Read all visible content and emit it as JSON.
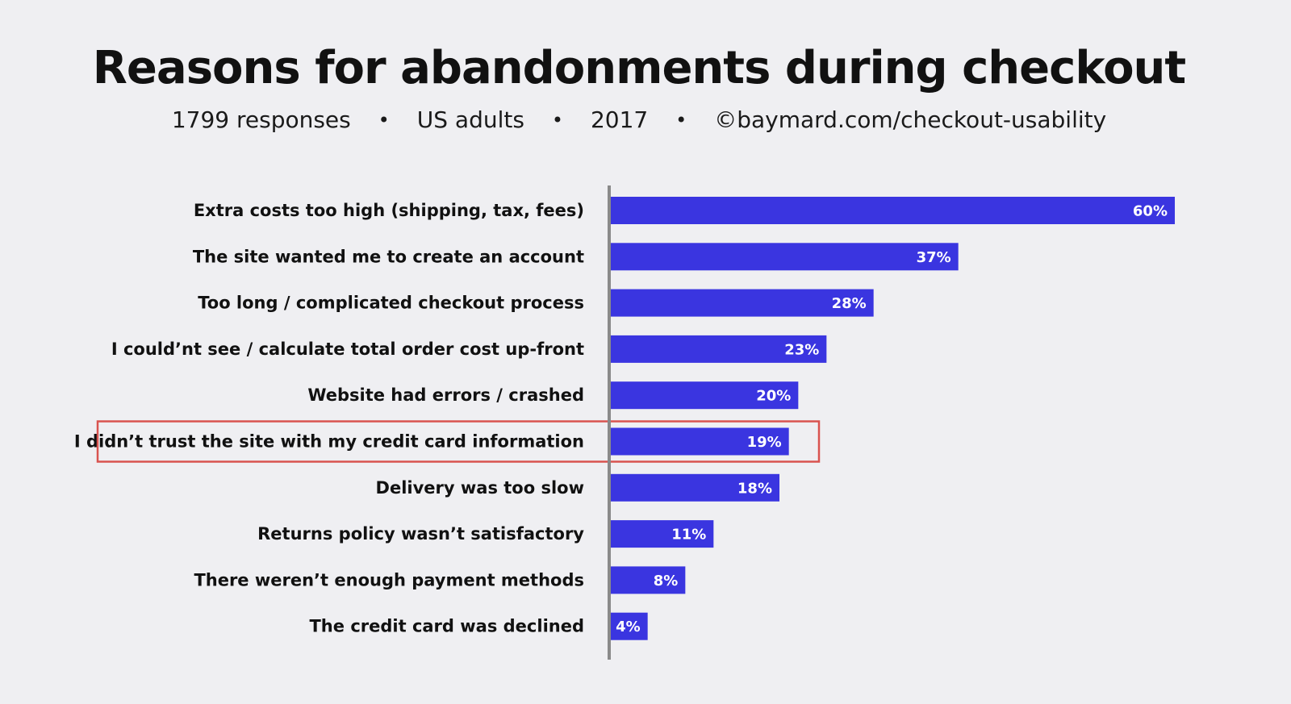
{
  "colors": {
    "background": "#efeff2",
    "bar": "#3a35e0",
    "axis": "#8a8a8a",
    "highlight": "#d9534f",
    "text": "#111111"
  },
  "chart_data": {
    "type": "bar",
    "orientation": "horizontal",
    "title": "Reasons for abandonments during checkout",
    "subtitle": {
      "responses": "1799 responses",
      "population": "US adults",
      "year": "2017",
      "source": "©baymard.com/checkout-usability",
      "separator": "•"
    },
    "xlim": [
      0,
      60
    ],
    "grid": false,
    "legend": "none",
    "value_suffix": "%",
    "highlighted_category": "I didn’t trust the site with my credit card information",
    "categories": [
      "Extra costs too high (shipping, tax, fees)",
      "The site wanted me to create an account",
      "Too long / complicated checkout process",
      "I could’nt see / calculate total order cost up-front",
      "Website had errors / crashed",
      "I didn’t trust the site with my credit card information",
      "Delivery was too slow",
      "Returns policy wasn’t satisfactory",
      "There weren’t enough payment methods",
      "The credit card was declined"
    ],
    "values": [
      60,
      37,
      28,
      23,
      20,
      19,
      18,
      11,
      8,
      4
    ]
  }
}
